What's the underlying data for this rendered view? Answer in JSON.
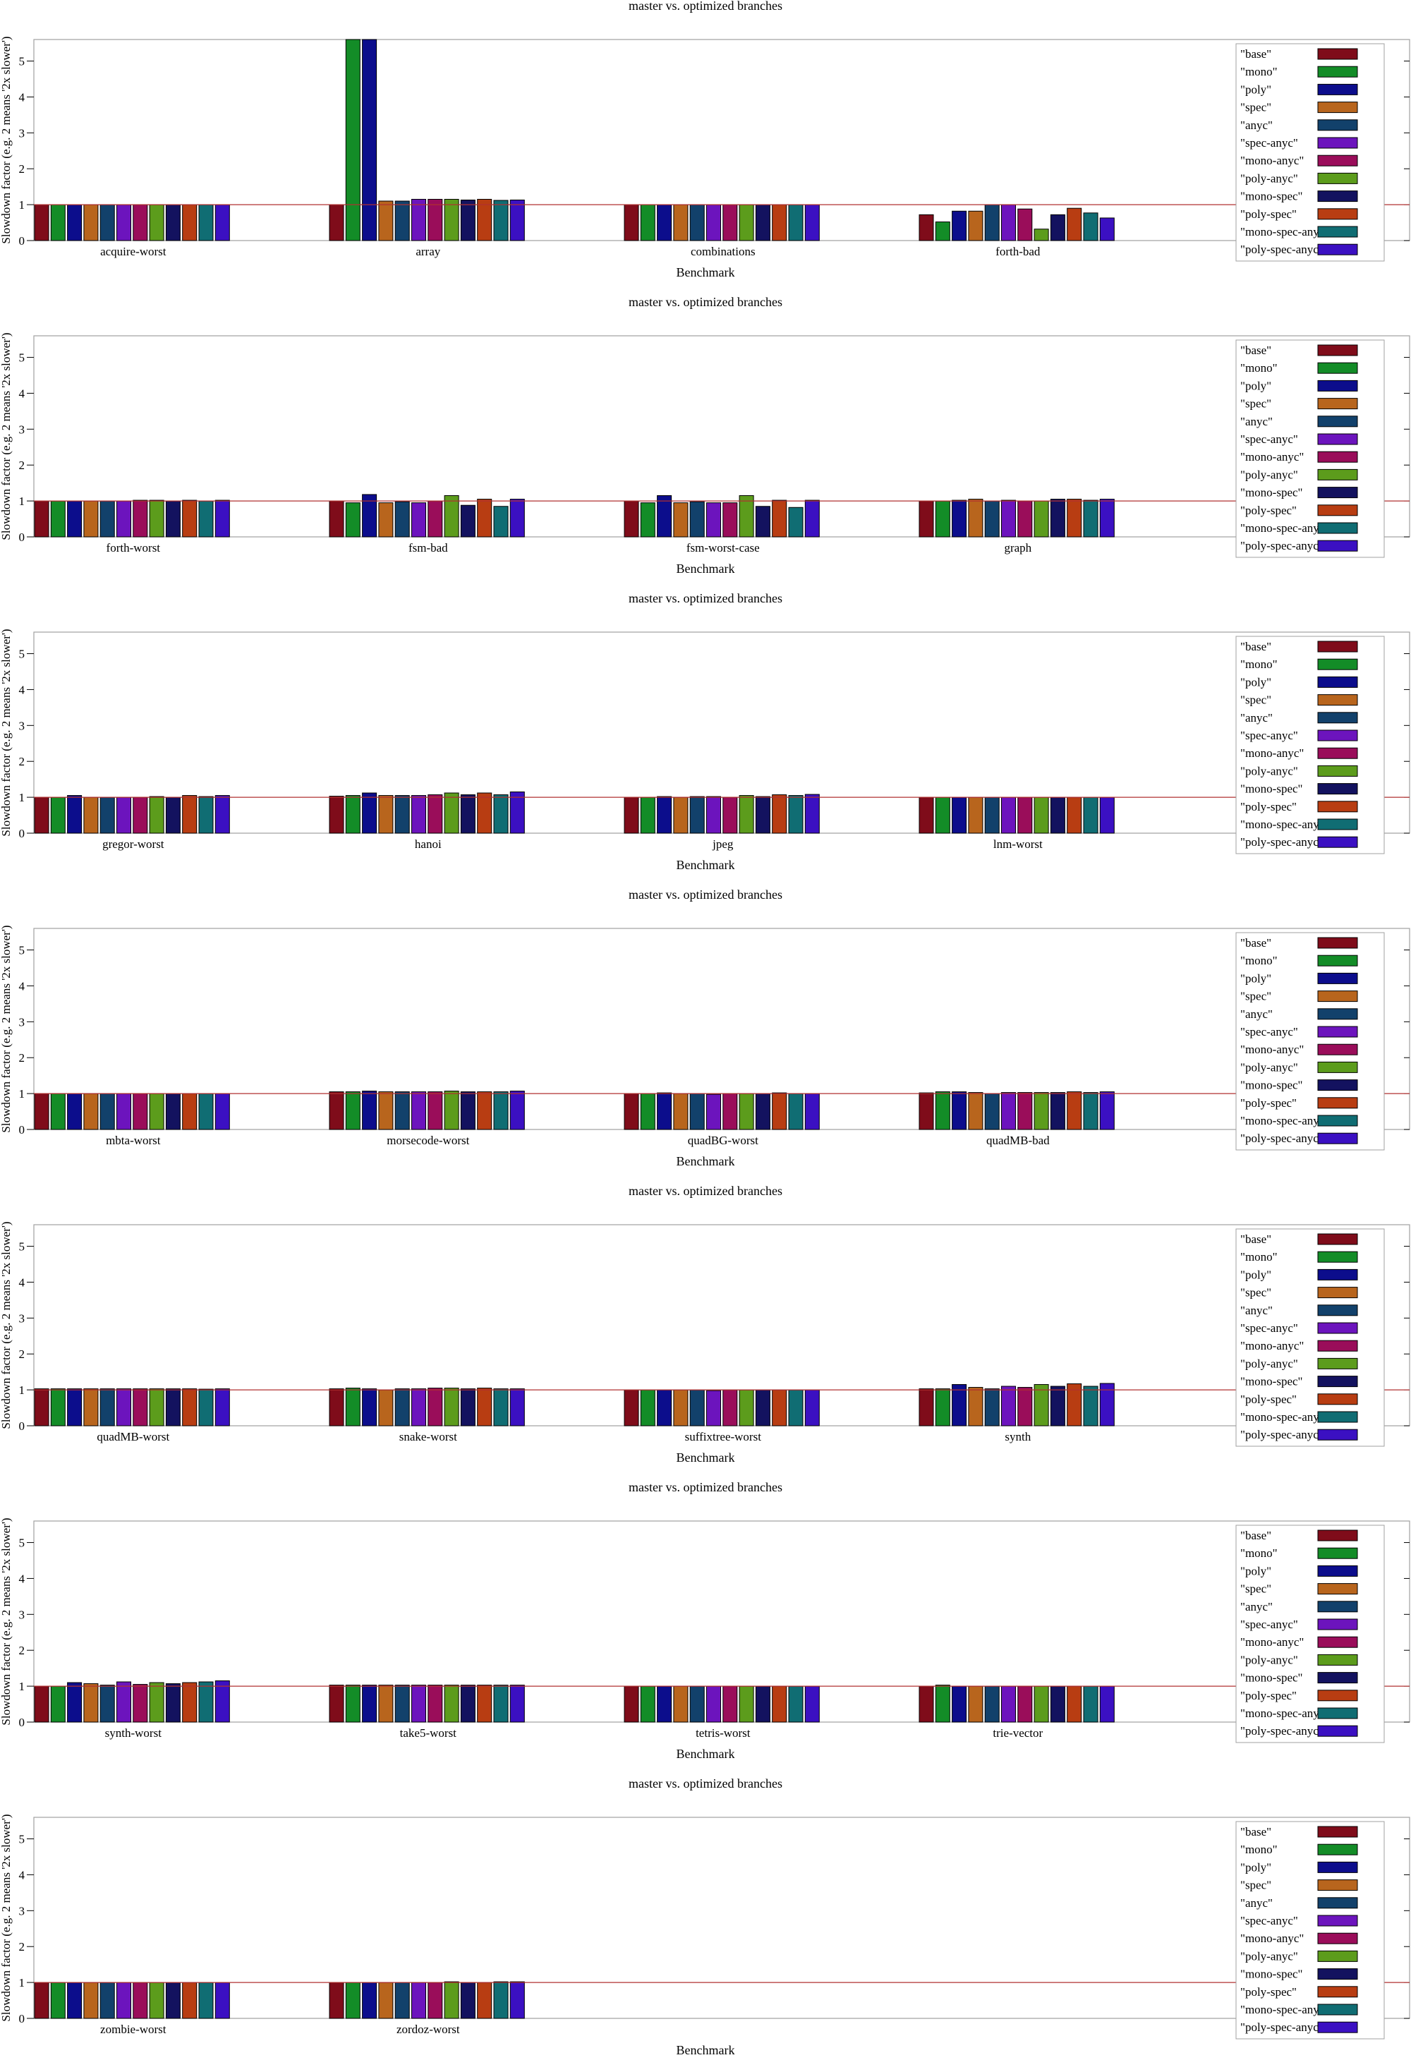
{
  "series": [
    {
      "name": "\"base\"",
      "color": "#7f0c1a"
    },
    {
      "name": "\"mono\"",
      "color": "#138c27"
    },
    {
      "name": "\"poly\"",
      "color": "#0c0d8c"
    },
    {
      "name": "\"spec\"",
      "color": "#b8651d"
    },
    {
      "name": "\"anyc\"",
      "color": "#12416b"
    },
    {
      "name": "\"spec-anyc\"",
      "color": "#6c14bd"
    },
    {
      "name": "\"mono-anyc\"",
      "color": "#9a0d5a"
    },
    {
      "name": "\"poly-anyc\"",
      "color": "#5c9c1c"
    },
    {
      "name": "\"mono-spec\"",
      "color": "#13125f"
    },
    {
      "name": "\"poly-spec\"",
      "color": "#b83d12"
    },
    {
      "name": "\"mono-spec-anyc\"",
      "color": "#106d73"
    },
    {
      "name": "\"poly-spec-anyc\"",
      "color": "#3b10c2"
    }
  ],
  "chart_data": [
    {
      "type": "bar",
      "title": "master vs. optimized branches",
      "xlabel": "Benchmark",
      "ylabel": "Slowdown factor (e.g. 2 means '2x slower')",
      "ylim": [
        0,
        5.6
      ],
      "yticks": [
        0,
        1,
        2,
        3,
        4,
        5
      ],
      "reference_line": 1,
      "grid": false,
      "legend": "top-right",
      "categories": [
        "acquire-worst",
        "array",
        "combinations",
        "forth-bad"
      ],
      "values": [
        [
          1.0,
          1.0,
          1.0,
          1.0,
          1.0,
          1.0,
          1.0,
          1.0,
          1.0,
          1.0,
          1.0,
          1.0
        ],
        [
          1.0,
          5.6,
          5.6,
          1.1,
          1.1,
          1.15,
          1.15,
          1.15,
          1.13,
          1.15,
          1.12,
          1.13
        ],
        [
          1.0,
          1.0,
          1.0,
          1.0,
          1.0,
          1.0,
          1.0,
          1.0,
          1.0,
          1.0,
          1.0,
          1.0
        ],
        [
          0.72,
          0.52,
          0.82,
          0.82,
          1.0,
          1.0,
          0.88,
          0.32,
          0.72,
          0.9,
          0.77,
          0.63
        ]
      ]
    },
    {
      "type": "bar",
      "title": "master vs. optimized branches",
      "xlabel": "Benchmark",
      "ylabel": "Slowdown factor (e.g. 2 means '2x slower')",
      "ylim": [
        0,
        5.6
      ],
      "yticks": [
        0,
        1,
        2,
        3,
        4,
        5
      ],
      "reference_line": 1,
      "grid": false,
      "legend": "top-right",
      "categories": [
        "forth-worst",
        "fsm-bad",
        "fsm-worst-case",
        "graph"
      ],
      "values": [
        [
          1.0,
          1.0,
          1.0,
          1.0,
          1.0,
          1.0,
          1.02,
          1.02,
          1.0,
          1.02,
          1.0,
          1.02
        ],
        [
          1.0,
          0.95,
          1.18,
          0.95,
          0.98,
          0.95,
          1.0,
          1.15,
          0.88,
          1.05,
          0.85,
          1.05
        ],
        [
          1.0,
          0.95,
          1.15,
          0.95,
          0.98,
          0.95,
          0.95,
          1.15,
          0.85,
          1.02,
          0.82,
          1.02
        ],
        [
          1.0,
          1.0,
          1.02,
          1.05,
          1.0,
          1.02,
          1.0,
          1.0,
          1.05,
          1.05,
          1.02,
          1.05
        ]
      ]
    },
    {
      "type": "bar",
      "title": "master vs. optimized branches",
      "xlabel": "Benchmark",
      "ylabel": "Slowdown factor (e.g. 2 means '2x slower')",
      "ylim": [
        0,
        5.6
      ],
      "yticks": [
        0,
        1,
        2,
        3,
        4,
        5
      ],
      "reference_line": 1,
      "grid": false,
      "legend": "top-right",
      "categories": [
        "gregor-worst",
        "hanoi",
        "jpeg",
        "lnm-worst"
      ],
      "values": [
        [
          1.0,
          1.0,
          1.05,
          1.0,
          1.0,
          1.0,
          1.0,
          1.02,
          1.0,
          1.05,
          1.02,
          1.05
        ],
        [
          1.03,
          1.05,
          1.12,
          1.05,
          1.05,
          1.05,
          1.07,
          1.12,
          1.07,
          1.12,
          1.07,
          1.15
        ],
        [
          1.0,
          1.0,
          1.02,
          1.0,
          1.02,
          1.02,
          1.0,
          1.05,
          1.02,
          1.07,
          1.05,
          1.08
        ],
        [
          1.0,
          1.0,
          1.0,
          1.0,
          1.0,
          1.0,
          1.0,
          1.0,
          1.0,
          1.0,
          1.0,
          1.0
        ]
      ]
    },
    {
      "type": "bar",
      "title": "master vs. optimized branches",
      "xlabel": "Benchmark",
      "ylabel": "Slowdown factor (e.g. 2 means '2x slower')",
      "ylim": [
        0,
        5.6
      ],
      "yticks": [
        0,
        1,
        2,
        3,
        4,
        5
      ],
      "reference_line": 1,
      "grid": false,
      "legend": "top-right",
      "categories": [
        "mbta-worst",
        "morsecode-worst",
        "quadBG-worst",
        "quadMB-bad"
      ],
      "values": [
        [
          1.0,
          1.0,
          1.0,
          1.0,
          1.0,
          1.0,
          1.0,
          1.0,
          1.0,
          1.0,
          1.0,
          1.0
        ],
        [
          1.05,
          1.05,
          1.07,
          1.05,
          1.05,
          1.05,
          1.05,
          1.07,
          1.05,
          1.05,
          1.05,
          1.07
        ],
        [
          1.0,
          1.0,
          1.02,
          1.0,
          1.0,
          0.98,
          1.0,
          1.0,
          1.0,
          1.02,
          1.0,
          1.0
        ],
        [
          1.02,
          1.05,
          1.05,
          1.03,
          1.0,
          1.03,
          1.03,
          1.03,
          1.03,
          1.05,
          1.03,
          1.05
        ]
      ]
    },
    {
      "type": "bar",
      "title": "master vs. optimized branches",
      "xlabel": "Benchmark",
      "ylabel": "Slowdown factor (e.g. 2 means '2x slower')",
      "ylim": [
        0,
        5.6
      ],
      "yticks": [
        0,
        1,
        2,
        3,
        4,
        5
      ],
      "reference_line": 1,
      "grid": false,
      "legend": "top-right",
      "categories": [
        "quadMB-worst",
        "snake-worst",
        "suffixtree-worst",
        "synth"
      ],
      "values": [
        [
          1.03,
          1.03,
          1.03,
          1.03,
          1.03,
          1.03,
          1.03,
          1.03,
          1.03,
          1.03,
          1.02,
          1.03
        ],
        [
          1.03,
          1.05,
          1.03,
          1.0,
          1.03,
          1.03,
          1.05,
          1.05,
          1.03,
          1.05,
          1.03,
          1.03
        ],
        [
          1.0,
          1.0,
          1.0,
          1.0,
          1.0,
          0.98,
          1.0,
          1.0,
          1.0,
          1.0,
          1.0,
          1.0
        ],
        [
          1.03,
          1.03,
          1.15,
          1.07,
          1.03,
          1.1,
          1.07,
          1.15,
          1.1,
          1.17,
          1.1,
          1.18
        ]
      ]
    },
    {
      "type": "bar",
      "title": "master vs. optimized branches",
      "xlabel": "Benchmark",
      "ylabel": "Slowdown factor (e.g. 2 means '2x slower')",
      "ylim": [
        0,
        5.6
      ],
      "yticks": [
        0,
        1,
        2,
        3,
        4,
        5
      ],
      "reference_line": 1,
      "grid": false,
      "legend": "top-right",
      "categories": [
        "synth-worst",
        "take5-worst",
        "tetris-worst",
        "trie-vector"
      ],
      "values": [
        [
          1.0,
          1.0,
          1.1,
          1.07,
          1.03,
          1.12,
          1.05,
          1.1,
          1.07,
          1.1,
          1.12,
          1.15
        ],
        [
          1.03,
          1.03,
          1.03,
          1.03,
          1.03,
          1.03,
          1.03,
          1.03,
          1.03,
          1.03,
          1.03,
          1.03
        ],
        [
          1.0,
          1.0,
          1.0,
          1.0,
          1.0,
          1.0,
          1.0,
          1.0,
          1.0,
          1.0,
          1.0,
          1.0
        ],
        [
          1.0,
          1.03,
          1.0,
          1.0,
          1.0,
          1.0,
          1.0,
          1.0,
          1.0,
          1.0,
          1.0,
          1.0
        ]
      ]
    },
    {
      "type": "bar",
      "title": "master vs. optimized branches",
      "xlabel": "Benchmark",
      "ylabel": "Slowdown factor (e.g. 2 means '2x slower')",
      "ylim": [
        0,
        5.6
      ],
      "yticks": [
        0,
        1,
        2,
        3,
        4,
        5
      ],
      "reference_line": 1,
      "grid": false,
      "legend": "top-right",
      "categories": [
        "zombie-worst",
        "zordoz-worst",
        "",
        ""
      ],
      "values": [
        [
          1.0,
          1.0,
          1.0,
          1.0,
          1.0,
          1.0,
          1.0,
          1.0,
          1.0,
          1.0,
          1.0,
          1.0
        ],
        [
          1.0,
          1.0,
          1.0,
          1.0,
          1.0,
          1.0,
          1.0,
          1.02,
          1.0,
          1.0,
          1.02,
          1.02
        ],
        null,
        null
      ]
    }
  ]
}
